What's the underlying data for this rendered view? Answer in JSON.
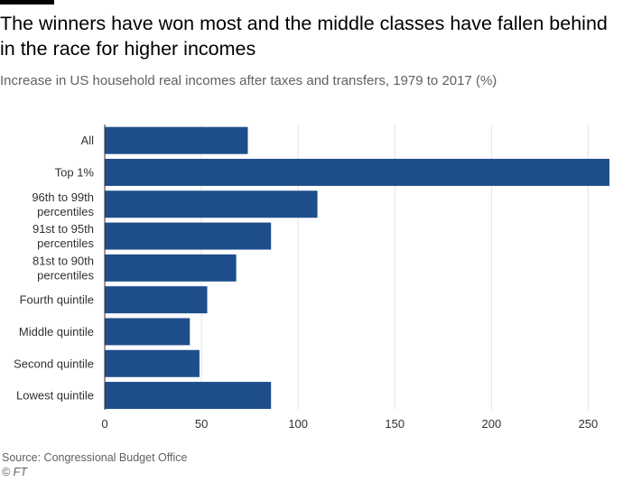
{
  "header": {
    "title": "The winners have won most and the middle classes have fallen behind in the race for higher incomes",
    "subtitle": "Increase in US household real incomes after taxes and transfers, 1979 to 2017 (%)"
  },
  "footer": {
    "source": "Source: Congressional Budget Office",
    "credit": "© FT"
  },
  "colors": {
    "bar": "#1f4e8c",
    "grid": "#e6e3e0",
    "axis": "#33302e"
  },
  "chart_data": {
    "type": "bar",
    "orientation": "horizontal",
    "title": "The winners have won most and the middle classes have fallen behind in the race for higher incomes",
    "subtitle": "Increase in US household real incomes after taxes and transfers, 1979 to 2017 (%)",
    "xlabel": "",
    "ylabel": "",
    "categories": [
      [
        "All"
      ],
      [
        "Top 1%"
      ],
      [
        "96th to 99th",
        "percentiles"
      ],
      [
        "91st to 95th",
        "percentiles"
      ],
      [
        "81st to 90th",
        "percentiles"
      ],
      [
        "Fourth quintile"
      ],
      [
        "Middle quintile"
      ],
      [
        "Second quintile"
      ],
      [
        "Lowest quintile"
      ]
    ],
    "values": [
      74,
      261,
      110,
      86,
      68,
      53,
      44,
      49,
      86
    ],
    "xlim": [
      0,
      261
    ],
    "xticks": [
      0,
      50,
      100,
      150,
      200,
      250
    ],
    "grid": true,
    "legend": "none"
  }
}
